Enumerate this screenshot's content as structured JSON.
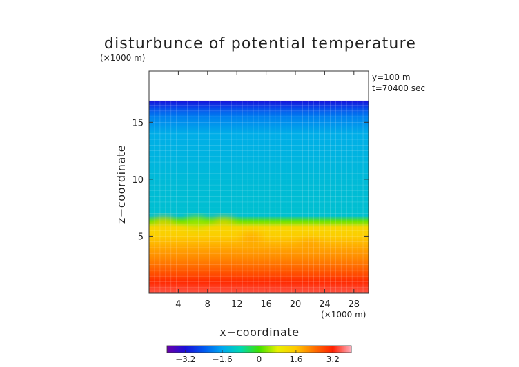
{
  "chart_data": {
    "type": "heatmap",
    "title": "disturbunce of potential temperature",
    "x_unit": "(×1000 m)",
    "z_unit": "(×1000 m)",
    "xlabel": "x−coordinate",
    "ylabel": "z−coordinate",
    "annotation_y": "y=100 m",
    "annotation_t": "t=70400 sec",
    "xlim": [
      0,
      30
    ],
    "ylim": [
      0,
      19.5
    ],
    "x_ticks": [
      4,
      8,
      12,
      16,
      20,
      24,
      28
    ],
    "y_ticks": [
      5,
      10,
      15
    ],
    "x_tick_labels": [
      "4",
      "8",
      "12",
      "16",
      "20",
      "24",
      "28"
    ],
    "y_tick_labels": [
      "5",
      "10",
      "15"
    ],
    "colorbar": {
      "range": [
        -4,
        4
      ],
      "ticks": [
        -3.2,
        -1.6,
        0,
        1.6,
        3.2
      ],
      "tick_labels": [
        "−3.2",
        "−1.6",
        "0",
        "1.6",
        "3.2"
      ],
      "colors": [
        "#6a00a8",
        "#1a10d8",
        "#0058f0",
        "#00a8f0",
        "#00d8b0",
        "#40e000",
        "#e8f000",
        "#ffc800",
        "#ff7000",
        "#ff2000",
        "#ffb0c0"
      ]
    },
    "field_top_z": 16.9,
    "profile": [
      {
        "z": 0.0,
        "value": 3.5
      },
      {
        "z": 1.0,
        "value": 3.1
      },
      {
        "z": 2.0,
        "value": 2.6
      },
      {
        "z": 3.0,
        "value": 2.2
      },
      {
        "z": 4.0,
        "value": 1.9
      },
      {
        "z": 5.0,
        "value": 1.5
      },
      {
        "z": 5.8,
        "value": 1.3
      },
      {
        "z": 6.3,
        "value": 0.2
      },
      {
        "z": 6.8,
        "value": -1.2
      },
      {
        "z": 10.0,
        "value": -1.3
      },
      {
        "z": 14.0,
        "value": -1.5
      },
      {
        "z": 15.5,
        "value": -2.0
      },
      {
        "z": 16.3,
        "value": -2.6
      },
      {
        "z": 16.9,
        "value": -3.2
      }
    ],
    "blobs": [
      {
        "x": 2.0,
        "z": 6.2,
        "value": 1.5
      },
      {
        "x": 10.2,
        "z": 6.2,
        "value": 1.4
      },
      {
        "x": 6.5,
        "z": 6.3,
        "value": 0.5
      },
      {
        "x": 14.0,
        "z": 4.8,
        "value": 2.0
      },
      {
        "x": 22.0,
        "z": 4.2,
        "value": 2.0
      }
    ]
  }
}
